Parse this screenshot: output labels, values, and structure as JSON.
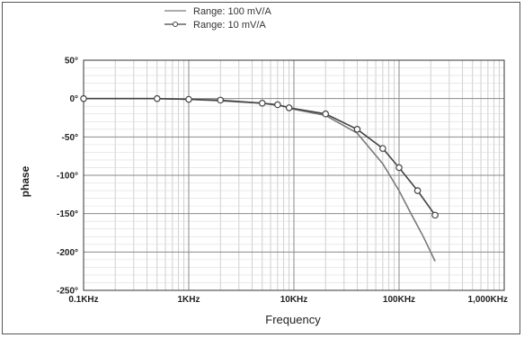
{
  "chart_data": {
    "type": "line",
    "xlabel": "Frequency",
    "ylabel": "phase",
    "x_scale": "log",
    "xlim_hz": [
      100,
      1000000
    ],
    "ylim": [
      -250,
      50
    ],
    "grid": true,
    "legend_placement": "top-left above plot",
    "x_tick_labels": [
      "0.1KHz",
      "1KHz",
      "10KHz",
      "100KHz",
      "1,000KHz"
    ],
    "x_tick_values_hz": [
      100,
      1000,
      10000,
      100000,
      1000000
    ],
    "y_tick_labels": [
      "50°",
      "0°",
      "-50°",
      "-100°",
      "-150°",
      "-200°",
      "-250°"
    ],
    "y_tick_values": [
      50,
      0,
      -50,
      -100,
      -150,
      -200,
      -250
    ],
    "series": [
      {
        "name": "Range: 100 mV/A",
        "marker": "none",
        "color": "#7a7a7a",
        "x_hz": [
          100,
          500,
          1000,
          2000,
          5000,
          8000,
          10000,
          20000,
          40000,
          70000,
          100000,
          130000,
          170000,
          220000
        ],
        "y": [
          0,
          0,
          -1,
          -3,
          -6,
          -10,
          -14,
          -22,
          -45,
          -85,
          -120,
          -150,
          -180,
          -212
        ]
      },
      {
        "name": "Range: 10 mV/A",
        "marker": "circle",
        "color": "#444444",
        "x_hz": [
          100,
          500,
          1000,
          2000,
          5000,
          7000,
          9000,
          20000,
          40000,
          70000,
          100000,
          150000,
          220000
        ],
        "y": [
          0,
          0,
          -1,
          -2,
          -6,
          -8,
          -12,
          -20,
          -40,
          -65,
          -90,
          -120,
          -152
        ]
      }
    ]
  }
}
